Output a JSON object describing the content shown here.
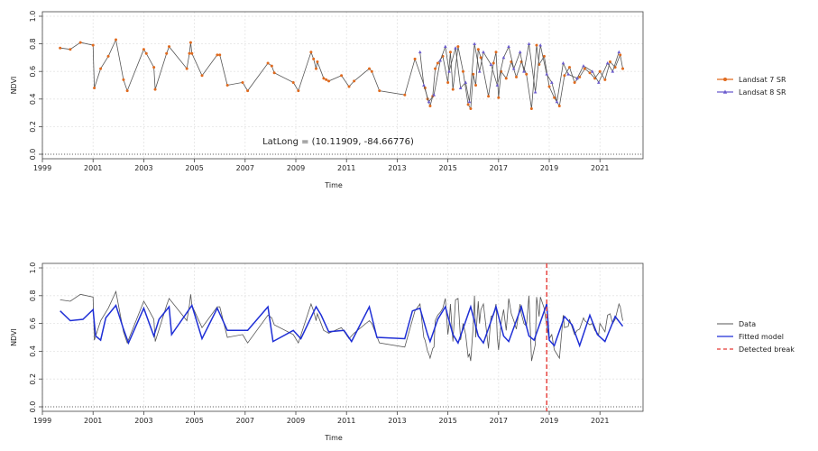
{
  "chart_data": [
    {
      "type": "line",
      "xlabel": "Time",
      "ylabel": "NDVI",
      "xlim": [
        1999,
        2022.7
      ],
      "ylim": [
        0,
        1
      ],
      "x_ticks": [
        1999,
        2001,
        2003,
        2005,
        2007,
        2009,
        2011,
        2013,
        2015,
        2017,
        2019,
        2021
      ],
      "y_ticks": [
        0.0,
        0.2,
        0.4,
        0.6,
        0.8,
        1.0
      ],
      "grid": true,
      "legend_position": "right",
      "annotation": "LatLong = (10.11909, -84.66776)",
      "series": [
        {
          "name": "Landsat 7 SR",
          "color": "#e06a1e",
          "marker": "circle",
          "x": [
            1999.7,
            2000.1,
            2000.5,
            2001.0,
            2001.05,
            2001.3,
            2001.6,
            2001.9,
            2002.2,
            2002.35,
            2003.0,
            2003.1,
            2003.4,
            2003.45,
            2003.9,
            2004.0,
            2004.7,
            2004.8,
            2004.85,
            2004.9,
            2005.3,
            2005.9,
            2006.0,
            2006.3,
            2006.9,
            2007.1,
            2007.9,
            2008.05,
            2008.15,
            2008.9,
            2009.1,
            2009.6,
            2009.7,
            2009.8,
            2009.85,
            2010.1,
            2010.2,
            2010.3,
            2010.8,
            2011.1,
            2011.3,
            2011.9,
            2012.0,
            2012.3,
            2013.3,
            2013.7,
            2014.1,
            2014.2,
            2014.3,
            2014.4,
            2014.5,
            2014.6,
            2014.8,
            2015.0,
            2015.1,
            2015.2,
            2015.4,
            2015.6,
            2015.8,
            2015.9,
            2016.0,
            2016.1,
            2016.2,
            2016.3,
            2016.6,
            2016.8,
            2016.9,
            2017.0,
            2017.1,
            2017.3,
            2017.5,
            2017.7,
            2017.9,
            2018.1,
            2018.3,
            2018.5,
            2018.6,
            2018.8,
            2019.0,
            2019.2,
            2019.4,
            2019.6,
            2019.8,
            2020.0,
            2020.2,
            2020.4,
            2020.6,
            2020.8,
            2021.0,
            2021.2,
            2021.4,
            2021.6,
            2021.8,
            2021.9
          ],
          "y": [
            0.77,
            0.76,
            0.81,
            0.79,
            0.48,
            0.62,
            0.71,
            0.83,
            0.54,
            0.46,
            0.76,
            0.73,
            0.63,
            0.47,
            0.73,
            0.78,
            0.62,
            0.73,
            0.81,
            0.73,
            0.57,
            0.72,
            0.72,
            0.5,
            0.52,
            0.46,
            0.66,
            0.64,
            0.59,
            0.52,
            0.46,
            0.74,
            0.69,
            0.62,
            0.67,
            0.55,
            0.54,
            0.53,
            0.57,
            0.49,
            0.53,
            0.62,
            0.6,
            0.46,
            0.43,
            0.69,
            0.48,
            0.4,
            0.35,
            0.42,
            0.62,
            0.66,
            0.71,
            0.52,
            0.74,
            0.47,
            0.78,
            0.6,
            0.36,
            0.33,
            0.58,
            0.5,
            0.76,
            0.7,
            0.42,
            0.66,
            0.74,
            0.41,
            0.6,
            0.55,
            0.67,
            0.56,
            0.67,
            0.58,
            0.33,
            0.79,
            0.65,
            0.71,
            0.49,
            0.41,
            0.35,
            0.57,
            0.63,
            0.52,
            0.56,
            0.62,
            0.59,
            0.55,
            0.6,
            0.54,
            0.67,
            0.63,
            0.72,
            0.62
          ]
        },
        {
          "name": "Landsat 8 SR",
          "color": "#6a5acd",
          "marker": "triangle",
          "x": [
            2013.9,
            2014.05,
            2014.25,
            2014.45,
            2014.7,
            2014.9,
            2015.05,
            2015.3,
            2015.5,
            2015.7,
            2015.85,
            2016.05,
            2016.25,
            2016.4,
            2016.7,
            2016.95,
            2017.2,
            2017.4,
            2017.6,
            2017.85,
            2018.0,
            2018.2,
            2018.45,
            2018.65,
            2018.9,
            2019.1,
            2019.3,
            2019.55,
            2019.75,
            2020.1,
            2020.35,
            2020.7,
            2020.95,
            2021.3,
            2021.5,
            2021.75
          ],
          "y": [
            0.74,
            0.5,
            0.38,
            0.43,
            0.68,
            0.78,
            0.6,
            0.77,
            0.48,
            0.52,
            0.38,
            0.8,
            0.6,
            0.74,
            0.65,
            0.5,
            0.7,
            0.78,
            0.62,
            0.74,
            0.6,
            0.8,
            0.45,
            0.79,
            0.58,
            0.52,
            0.38,
            0.66,
            0.58,
            0.55,
            0.64,
            0.6,
            0.52,
            0.66,
            0.6,
            0.74
          ]
        }
      ]
    },
    {
      "type": "line",
      "xlabel": "Time",
      "ylabel": "NDVI",
      "xlim": [
        1999,
        2022.7
      ],
      "ylim": [
        0,
        1
      ],
      "x_ticks": [
        1999,
        2001,
        2003,
        2005,
        2007,
        2009,
        2011,
        2013,
        2015,
        2017,
        2019,
        2021
      ],
      "y_ticks": [
        0.0,
        0.2,
        0.4,
        0.6,
        0.8,
        1.0
      ],
      "grid": true,
      "legend_position": "right",
      "break_x": 2018.9,
      "series": [
        {
          "name": "Data",
          "color": "#555555",
          "style": "solid",
          "x": [
            1999.7,
            2000.1,
            2000.5,
            2001.0,
            2001.05,
            2001.3,
            2001.6,
            2001.9,
            2002.2,
            2002.35,
            2003.0,
            2003.1,
            2003.4,
            2003.45,
            2003.9,
            2004.0,
            2004.7,
            2004.8,
            2004.85,
            2004.9,
            2005.3,
            2005.9,
            2006.0,
            2006.3,
            2006.9,
            2007.1,
            2007.9,
            2008.05,
            2008.15,
            2008.9,
            2009.1,
            2009.6,
            2009.7,
            2009.8,
            2009.85,
            2010.1,
            2010.2,
            2010.3,
            2010.8,
            2011.1,
            2011.3,
            2011.9,
            2012.0,
            2012.3,
            2013.3,
            2013.7,
            2013.9,
            2014.05,
            2014.1,
            2014.2,
            2014.25,
            2014.3,
            2014.4,
            2014.45,
            2014.5,
            2014.6,
            2014.7,
            2014.8,
            2014.9,
            2015.0,
            2015.05,
            2015.1,
            2015.2,
            2015.3,
            2015.4,
            2015.5,
            2015.6,
            2015.7,
            2015.8,
            2015.85,
            2015.9,
            2016.0,
            2016.05,
            2016.1,
            2016.2,
            2016.25,
            2016.3,
            2016.4,
            2016.6,
            2016.7,
            2016.8,
            2016.9,
            2016.95,
            2017.0,
            2017.1,
            2017.2,
            2017.3,
            2017.4,
            2017.5,
            2017.6,
            2017.7,
            2017.85,
            2017.9,
            2018.0,
            2018.1,
            2018.2,
            2018.3,
            2018.45,
            2018.5,
            2018.6,
            2018.65,
            2018.8,
            2018.9,
            2019.0,
            2019.1,
            2019.2,
            2019.3,
            2019.4,
            2019.55,
            2019.6,
            2019.75,
            2019.8,
            2020.0,
            2020.1,
            2020.2,
            2020.35,
            2020.4,
            2020.6,
            2020.7,
            2020.8,
            2020.95,
            2021.0,
            2021.2,
            2021.3,
            2021.4,
            2021.5,
            2021.6,
            2021.75,
            2021.8,
            2021.9
          ],
          "y": [
            0.77,
            0.76,
            0.81,
            0.79,
            0.48,
            0.62,
            0.71,
            0.83,
            0.54,
            0.46,
            0.76,
            0.73,
            0.63,
            0.47,
            0.73,
            0.78,
            0.62,
            0.73,
            0.81,
            0.73,
            0.57,
            0.72,
            0.72,
            0.5,
            0.52,
            0.46,
            0.66,
            0.64,
            0.59,
            0.52,
            0.46,
            0.74,
            0.69,
            0.62,
            0.67,
            0.55,
            0.54,
            0.53,
            0.57,
            0.49,
            0.53,
            0.62,
            0.6,
            0.46,
            0.43,
            0.69,
            0.74,
            0.5,
            0.48,
            0.4,
            0.38,
            0.35,
            0.42,
            0.43,
            0.62,
            0.66,
            0.68,
            0.71,
            0.78,
            0.52,
            0.6,
            0.74,
            0.47,
            0.77,
            0.78,
            0.48,
            0.6,
            0.52,
            0.36,
            0.38,
            0.33,
            0.58,
            0.8,
            0.5,
            0.76,
            0.6,
            0.7,
            0.74,
            0.42,
            0.65,
            0.66,
            0.74,
            0.5,
            0.41,
            0.6,
            0.7,
            0.55,
            0.78,
            0.67,
            0.62,
            0.56,
            0.74,
            0.67,
            0.6,
            0.58,
            0.8,
            0.33,
            0.45,
            0.79,
            0.65,
            0.79,
            0.71,
            0.58,
            0.49,
            0.52,
            0.41,
            0.38,
            0.35,
            0.66,
            0.57,
            0.58,
            0.63,
            0.52,
            0.55,
            0.56,
            0.64,
            0.62,
            0.59,
            0.6,
            0.55,
            0.52,
            0.6,
            0.54,
            0.66,
            0.67,
            0.6,
            0.63,
            0.74,
            0.72,
            0.62
          ]
        },
        {
          "name": "Fitted model",
          "color": "#1f2fd6",
          "style": "solid",
          "x": [
            1999.7,
            2000.1,
            2000.6,
            2001.0,
            2001.1,
            2001.3,
            2001.5,
            2001.9,
            2002.2,
            2002.4,
            2003.0,
            2003.4,
            2003.6,
            2004.0,
            2004.1,
            2004.9,
            2005.3,
            2005.9,
            2006.3,
            2007.1,
            2007.9,
            2008.1,
            2008.9,
            2009.2,
            2009.8,
            2010.0,
            2010.3,
            2010.9,
            2011.2,
            2011.9,
            2012.2,
            2013.3,
            2013.6,
            2013.9,
            2014.2,
            2014.3,
            2014.6,
            2014.9,
            2015.2,
            2015.4,
            2015.9,
            2016.2,
            2016.4,
            2016.9,
            2017.2,
            2017.4,
            2017.9,
            2018.2,
            2018.4,
            2018.9,
            2019.0,
            2019.2,
            2019.6,
            2019.9,
            2020.2,
            2020.6,
            2020.9,
            2021.2,
            2021.6,
            2021.9
          ],
          "y": [
            0.69,
            0.62,
            0.63,
            0.7,
            0.51,
            0.48,
            0.64,
            0.73,
            0.56,
            0.46,
            0.71,
            0.51,
            0.63,
            0.72,
            0.52,
            0.73,
            0.49,
            0.71,
            0.55,
            0.55,
            0.72,
            0.47,
            0.55,
            0.49,
            0.72,
            0.66,
            0.54,
            0.55,
            0.47,
            0.72,
            0.5,
            0.49,
            0.69,
            0.71,
            0.52,
            0.47,
            0.63,
            0.72,
            0.52,
            0.46,
            0.72,
            0.51,
            0.46,
            0.72,
            0.51,
            0.47,
            0.72,
            0.51,
            0.48,
            0.74,
            0.48,
            0.44,
            0.65,
            0.59,
            0.44,
            0.66,
            0.52,
            0.47,
            0.65,
            0.58
          ]
        },
        {
          "name": "Detected break",
          "color": "#e53935",
          "style": "dashed"
        }
      ]
    }
  ]
}
